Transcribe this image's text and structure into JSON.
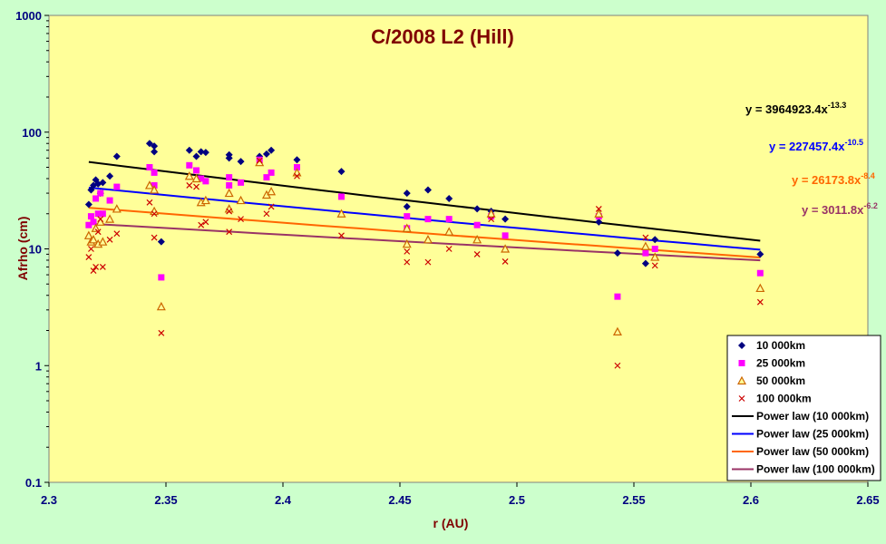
{
  "chart_data": {
    "type": "scatter",
    "title": "C/2008 L2 (Hill)",
    "xlabel": "r (AU)",
    "ylabel": "Afrho (cm)",
    "xlim": [
      2.3,
      2.65
    ],
    "ylim": [
      0.1,
      1000
    ],
    "yscale": "log",
    "x_ticks": [
      "2.3",
      "2.35",
      "2.4",
      "2.45",
      "2.5",
      "2.55",
      "2.6",
      "2.65"
    ],
    "y_ticks": [
      "0.1",
      "1",
      "10",
      "100",
      "1000"
    ],
    "plot_background": "#ffff99",
    "page_background": "#ccffcc",
    "grid": false,
    "legend_position": "bottom-right",
    "series": [
      {
        "name": "10 000km",
        "marker": "diamond",
        "color": "#000080",
        "points": [
          [
            2.317,
            24
          ],
          [
            2.318,
            32
          ],
          [
            2.319,
            35
          ],
          [
            2.32,
            39
          ],
          [
            2.321,
            36
          ],
          [
            2.322,
            30
          ],
          [
            2.323,
            37
          ],
          [
            2.326,
            42
          ],
          [
            2.329,
            62
          ],
          [
            2.343,
            80
          ],
          [
            2.345,
            76
          ],
          [
            2.345,
            68
          ],
          [
            2.348,
            11.5
          ],
          [
            2.36,
            70
          ],
          [
            2.363,
            62
          ],
          [
            2.365,
            68
          ],
          [
            2.367,
            67
          ],
          [
            2.377,
            64
          ],
          [
            2.377,
            60
          ],
          [
            2.382,
            56
          ],
          [
            2.39,
            62
          ],
          [
            2.393,
            65
          ],
          [
            2.395,
            70
          ],
          [
            2.406,
            58
          ],
          [
            2.425,
            46
          ],
          [
            2.453,
            30
          ],
          [
            2.453,
            23
          ],
          [
            2.462,
            32
          ],
          [
            2.471,
            27
          ],
          [
            2.483,
            22
          ],
          [
            2.489,
            21
          ],
          [
            2.495,
            18
          ],
          [
            2.535,
            17
          ],
          [
            2.543,
            9.2
          ],
          [
            2.555,
            7.5
          ],
          [
            2.559,
            12
          ],
          [
            2.604,
            9
          ]
        ]
      },
      {
        "name": "25 000km",
        "marker": "square",
        "color": "#ff00ff",
        "points": [
          [
            2.317,
            16
          ],
          [
            2.318,
            19
          ],
          [
            2.319,
            17
          ],
          [
            2.32,
            27
          ],
          [
            2.321,
            20
          ],
          [
            2.322,
            30
          ],
          [
            2.323,
            20
          ],
          [
            2.326,
            26
          ],
          [
            2.329,
            34
          ],
          [
            2.343,
            50
          ],
          [
            2.345,
            45
          ],
          [
            2.345,
            35
          ],
          [
            2.348,
            5.7
          ],
          [
            2.36,
            52
          ],
          [
            2.363,
            47
          ],
          [
            2.365,
            40
          ],
          [
            2.367,
            38
          ],
          [
            2.377,
            41
          ],
          [
            2.377,
            35
          ],
          [
            2.382,
            37
          ],
          [
            2.39,
            58
          ],
          [
            2.393,
            41
          ],
          [
            2.395,
            45
          ],
          [
            2.406,
            50
          ],
          [
            2.425,
            28
          ],
          [
            2.453,
            19
          ],
          [
            2.453,
            15
          ],
          [
            2.462,
            18
          ],
          [
            2.471,
            18
          ],
          [
            2.483,
            16
          ],
          [
            2.489,
            19
          ],
          [
            2.495,
            13
          ],
          [
            2.535,
            19
          ],
          [
            2.543,
            3.9
          ],
          [
            2.555,
            9.2
          ],
          [
            2.559,
            10
          ],
          [
            2.604,
            6.2
          ]
        ]
      },
      {
        "name": "50 000km",
        "marker": "triangle",
        "color": "#cc6600",
        "points": [
          [
            2.317,
            13
          ],
          [
            2.318,
            11.5
          ],
          [
            2.319,
            12
          ],
          [
            2.32,
            15
          ],
          [
            2.321,
            11
          ],
          [
            2.322,
            17
          ],
          [
            2.323,
            11.5
          ],
          [
            2.326,
            18
          ],
          [
            2.329,
            22
          ],
          [
            2.343,
            35
          ],
          [
            2.345,
            32
          ],
          [
            2.345,
            21
          ],
          [
            2.348,
            3.2
          ],
          [
            2.36,
            42
          ],
          [
            2.363,
            40
          ],
          [
            2.365,
            25
          ],
          [
            2.367,
            26
          ],
          [
            2.377,
            30
          ],
          [
            2.377,
            22
          ],
          [
            2.382,
            26
          ],
          [
            2.39,
            55
          ],
          [
            2.393,
            29
          ],
          [
            2.395,
            31
          ],
          [
            2.406,
            45
          ],
          [
            2.425,
            20
          ],
          [
            2.453,
            15
          ],
          [
            2.453,
            11
          ],
          [
            2.462,
            12
          ],
          [
            2.471,
            14
          ],
          [
            2.483,
            12
          ],
          [
            2.489,
            20
          ],
          [
            2.495,
            10
          ],
          [
            2.535,
            20
          ],
          [
            2.543,
            1.95
          ],
          [
            2.555,
            10.5
          ],
          [
            2.559,
            8.5
          ],
          [
            2.604,
            4.6
          ]
        ]
      },
      {
        "name": "100 000km",
        "marker": "x",
        "color": "#cc0000",
        "points": [
          [
            2.317,
            8.5
          ],
          [
            2.318,
            10
          ],
          [
            2.319,
            6.5
          ],
          [
            2.32,
            7
          ],
          [
            2.321,
            14
          ],
          [
            2.322,
            18
          ],
          [
            2.323,
            7
          ],
          [
            2.326,
            12
          ],
          [
            2.329,
            13.5
          ],
          [
            2.343,
            25
          ],
          [
            2.345,
            20
          ],
          [
            2.345,
            12.5
          ],
          [
            2.348,
            1.9
          ],
          [
            2.36,
            35
          ],
          [
            2.363,
            34
          ],
          [
            2.365,
            16
          ],
          [
            2.367,
            17
          ],
          [
            2.377,
            14
          ],
          [
            2.377,
            21
          ],
          [
            2.382,
            18
          ],
          [
            2.39,
            57
          ],
          [
            2.393,
            20
          ],
          [
            2.395,
            23
          ],
          [
            2.406,
            42
          ],
          [
            2.425,
            13
          ],
          [
            2.453,
            7.7
          ],
          [
            2.453,
            9.5
          ],
          [
            2.462,
            7.7
          ],
          [
            2.471,
            10
          ],
          [
            2.483,
            9
          ],
          [
            2.489,
            18
          ],
          [
            2.495,
            7.8
          ],
          [
            2.535,
            22
          ],
          [
            2.543,
            1.0
          ],
          [
            2.555,
            12.5
          ],
          [
            2.559,
            7.2
          ],
          [
            2.604,
            3.5
          ]
        ]
      }
    ],
    "fits": [
      {
        "name": "Power law (10 000km)",
        "color": "#000000",
        "coef": 3964923.4,
        "exp": -13.3,
        "coef_text": "y = 3964923.4x",
        "exp_text": "-13.3"
      },
      {
        "name": "Power law (25 000km)",
        "color": "#0000ff",
        "coef": 227457.4,
        "exp": -10.5,
        "coef_text": "y = 227457.4x",
        "exp_text": "-10.5"
      },
      {
        "name": "Power law (50 000km)",
        "color": "#ff6600",
        "coef": 26173.8,
        "exp": -8.4,
        "coef_text": "y = 26173.8x",
        "exp_text": "-8.4"
      },
      {
        "name": "Power law (100 000km)",
        "color": "#993366",
        "coef": 3011.8,
        "exp": -6.2,
        "coef_text": "y = 3011.8x",
        "exp_text": "-6.2"
      }
    ],
    "fit_x_range": [
      2.317,
      2.604
    ]
  }
}
